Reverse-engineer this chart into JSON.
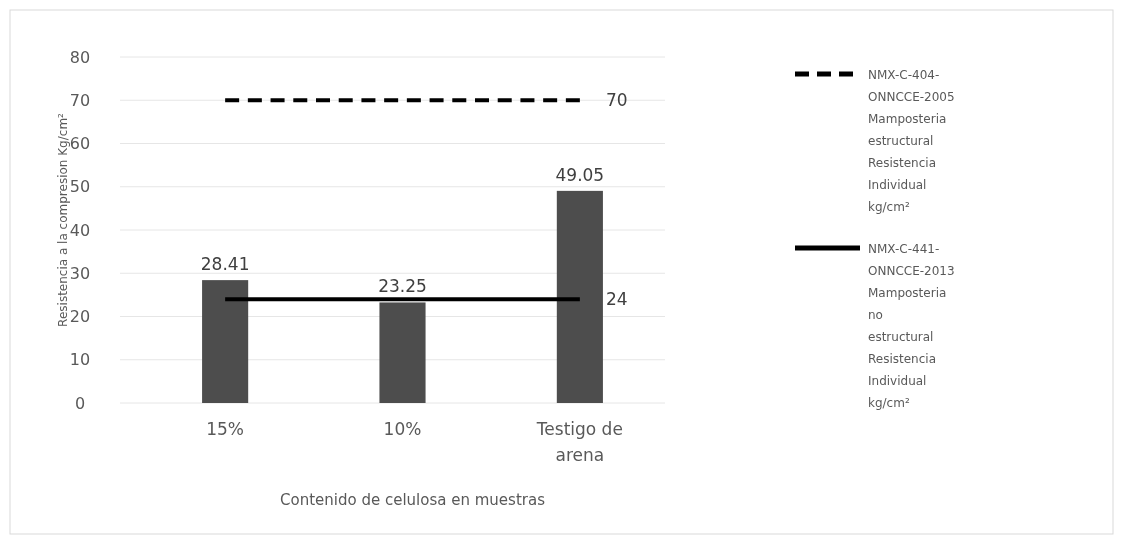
{
  "chart_data": {
    "type": "bar",
    "xlabel": "Contenido de celulosa en muestras",
    "ylabel": "Resistencia a la compresion Kg/cm²",
    "categories": [
      "15%",
      "10%",
      "Testigo de arena"
    ],
    "ylim": [
      0,
      80
    ],
    "yticks": [
      0,
      10,
      20,
      30,
      40,
      50,
      60,
      70,
      80
    ],
    "grid": "y",
    "legend": "right",
    "series": [
      {
        "color": "#4d4d4d",
        "values": [
          28.41,
          23.25,
          49.05
        ],
        "value_labels": [
          "28.41",
          "23.25",
          "49.05"
        ]
      },
      {
        "type": "line",
        "name": "NMX-C-404-ONNCCE-2005 Mamposteria estructural Resistencia Individual kg/cm²",
        "color": "#000000",
        "line_style": "dashed",
        "values": [
          70,
          70,
          70
        ],
        "value_labels": [
          null,
          null,
          "70"
        ]
      },
      {
        "type": "line",
        "name": "NMX-C-441-ONNCCE-2013 Mamposteria no estructural Resistencia Individual kg/cm²",
        "color": "#000000",
        "line_style": "solid",
        "values": [
          24,
          24,
          24
        ],
        "value_labels": [
          null,
          null,
          "24"
        ]
      }
    ],
    "marker": "none"
  }
}
